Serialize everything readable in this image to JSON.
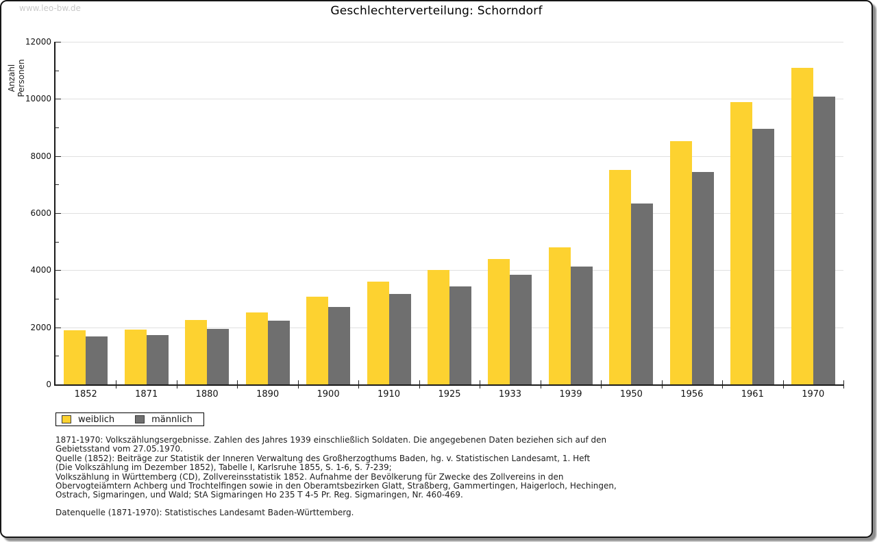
{
  "window": {
    "watermark": "www.leo-bw.de",
    "title": "Geschlechterverteilung: Schorndorf"
  },
  "chart_data": {
    "type": "bar",
    "title": "Geschlechterverteilung: Schorndorf",
    "xlabel": "",
    "ylabel": "Anzahl Personen",
    "ylim": [
      0,
      12000
    ],
    "ytick_step": 2000,
    "ytick_minor_step": 1000,
    "ytick_labels": [
      "0",
      "2000",
      "4000",
      "6000",
      "8000",
      "10000",
      "12000"
    ],
    "grid": true,
    "legend_position": "bottom-left",
    "categories": [
      "1852",
      "1871",
      "1880",
      "1890",
      "1900",
      "1910",
      "1925",
      "1933",
      "1939",
      "1950",
      "1956",
      "1961",
      "1970"
    ],
    "series": [
      {
        "name": "weiblich",
        "color": "#fdd230",
        "values": [
          1890,
          1930,
          2260,
          2530,
          3080,
          3610,
          4000,
          4400,
          4810,
          7510,
          8520,
          9880,
          11090
        ]
      },
      {
        "name": "männlich",
        "color": "#6f6f6f",
        "values": [
          1670,
          1740,
          1940,
          2230,
          2710,
          3180,
          3430,
          3840,
          4140,
          6330,
          7430,
          8950,
          10090
        ]
      }
    ]
  },
  "legend": {
    "items": [
      {
        "label": "weiblich",
        "color": "#fdd230"
      },
      {
        "label": "männlich",
        "color": "#6f6f6f"
      }
    ]
  },
  "footnotes": {
    "lines": [
      "1871-1970: Volkszählungsergebnisse. Zahlen des Jahres 1939 einschließlich Soldaten. Die angegebenen Daten beziehen sich auf den",
      "Gebietsstand vom 27.05.1970.",
      "Quelle (1852): Beiträge zur Statistik der Inneren Verwaltung des Großherzogthums Baden, hg. v. Statistischen Landesamt, 1. Heft",
      "(Die Volkszählung im Dezember 1852), Tabelle I, Karlsruhe 1855, S. 1-6, S. 7-239;",
      "Volkszählung in Württemberg (CD), Zollvereinsstatistik 1852. Aufnahme der Bevölkerung für Zwecke des Zollvereins in den",
      "Obervogteiämtern Achberg und Trochtelfingen sowie in den Oberamtsbezirken Glatt, Straßberg, Gammertingen, Haigerloch, Hechingen,",
      "Ostrach, Sigmaringen, und Wald; StA Sigmaringen Ho 235 T 4-5 Pr. Reg. Sigmaringen, Nr. 460-469."
    ],
    "datasource": "Datenquelle (1871-1970): Statistisches Landesamt Baden-Württemberg."
  },
  "colors": {
    "female_bar": "#fdd230",
    "male_bar": "#6f6f6f",
    "gridline": "#e0e0e0",
    "axis": "#1a1a1a",
    "watermark": "#c9c9c9",
    "text": "#1c1c1c"
  }
}
